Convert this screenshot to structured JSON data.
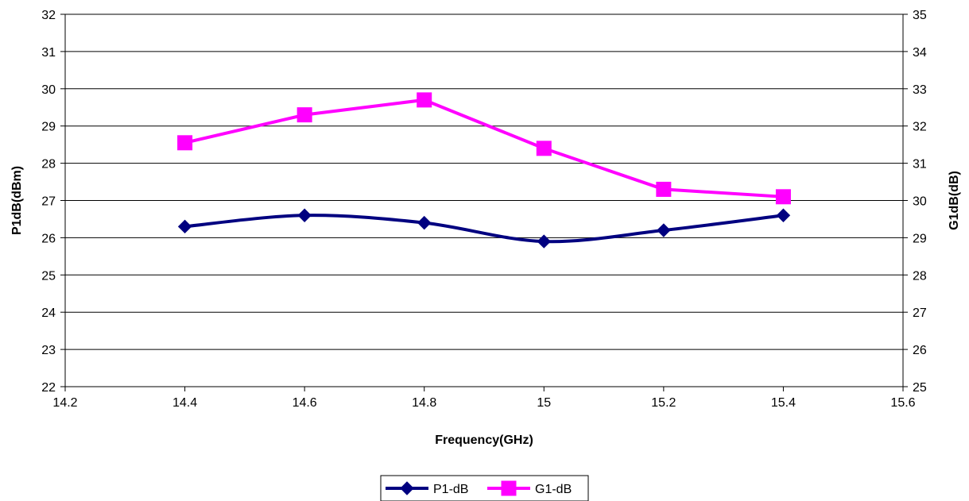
{
  "chart_data": {
    "type": "line",
    "title": "",
    "xlabel": "Frequency(GHz)",
    "ylabel": "P1dB(dBm)",
    "y2label": "G1dB(dB)",
    "xlim": [
      14.2,
      15.6
    ],
    "ylim": [
      22,
      32
    ],
    "y2lim": [
      25,
      35
    ],
    "x_ticks": [
      "14.2",
      "14.4",
      "14.6",
      "14.8",
      "15",
      "15.2",
      "15.4",
      "15.6"
    ],
    "y_ticks": [
      "22",
      "23",
      "24",
      "25",
      "26",
      "27",
      "28",
      "29",
      "30",
      "31",
      "32"
    ],
    "y2_ticks": [
      "25",
      "26",
      "27",
      "28",
      "29",
      "30",
      "31",
      "32",
      "33",
      "34",
      "35"
    ],
    "grid": "horizontal",
    "legend_position": "bottom",
    "series": [
      {
        "name": "P1-dB",
        "axis": "left",
        "marker": "diamond",
        "smooth": true,
        "color": "#000080",
        "x": [
          14.4,
          14.6,
          14.8,
          15.0,
          15.2,
          15.4
        ],
        "y": [
          26.3,
          26.6,
          26.4,
          25.9,
          26.2,
          26.6
        ]
      },
      {
        "name": "G1-dB",
        "axis": "right",
        "marker": "square",
        "smooth": false,
        "color": "#FF00FF",
        "x": [
          14.4,
          14.6,
          14.8,
          15.0,
          15.2,
          15.4
        ],
        "y": [
          31.55,
          32.3,
          32.7,
          31.4,
          30.3,
          30.1
        ]
      }
    ]
  }
}
